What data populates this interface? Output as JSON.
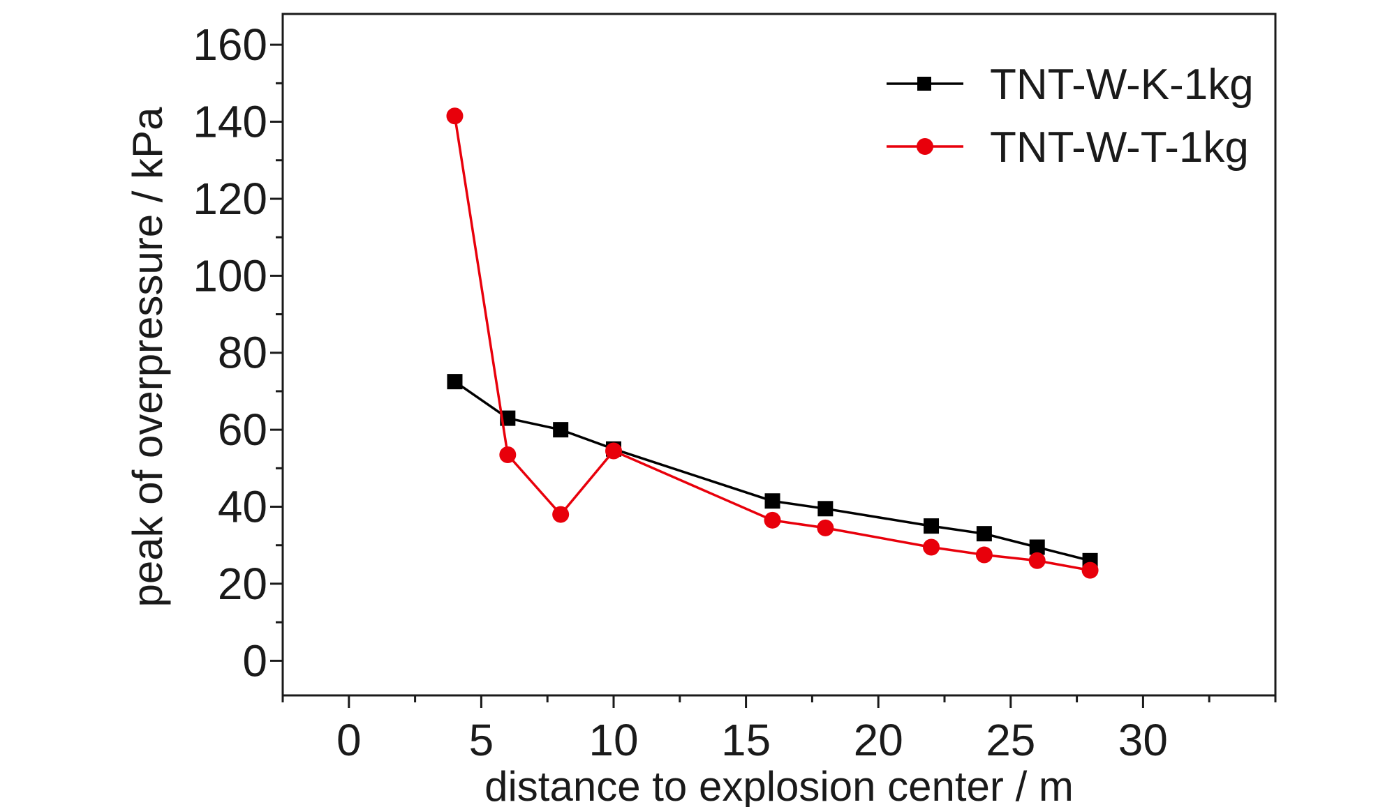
{
  "chart_data": {
    "type": "line",
    "xlabel": "distance to explosion center / m",
    "ylabel": "peak of overpressure / kPa",
    "xlim": [
      -2.5,
      35
    ],
    "ylim": [
      -9,
      168
    ],
    "xticks": [
      0,
      5,
      10,
      15,
      20,
      25,
      30
    ],
    "yticks": [
      0,
      20,
      40,
      60,
      80,
      100,
      120,
      140,
      160
    ],
    "grid": false,
    "legend_position": "top-right",
    "series": [
      {
        "name": "TNT-W-K-1kg",
        "color": "#000000",
        "marker": "square",
        "x": [
          4,
          6,
          8,
          10,
          16,
          18,
          22,
          24,
          26,
          28
        ],
        "y": [
          72.5,
          63,
          60,
          55,
          41.5,
          39.5,
          35,
          33,
          29.5,
          26
        ]
      },
      {
        "name": "TNT-W-T-1kg",
        "color": "#e8000b",
        "marker": "circle",
        "x": [
          4,
          6,
          8,
          10,
          16,
          18,
          22,
          24,
          26,
          28
        ],
        "y": [
          141.5,
          53.5,
          38,
          54.5,
          36.5,
          34.5,
          29.5,
          27.5,
          26,
          23.5
        ]
      }
    ]
  }
}
